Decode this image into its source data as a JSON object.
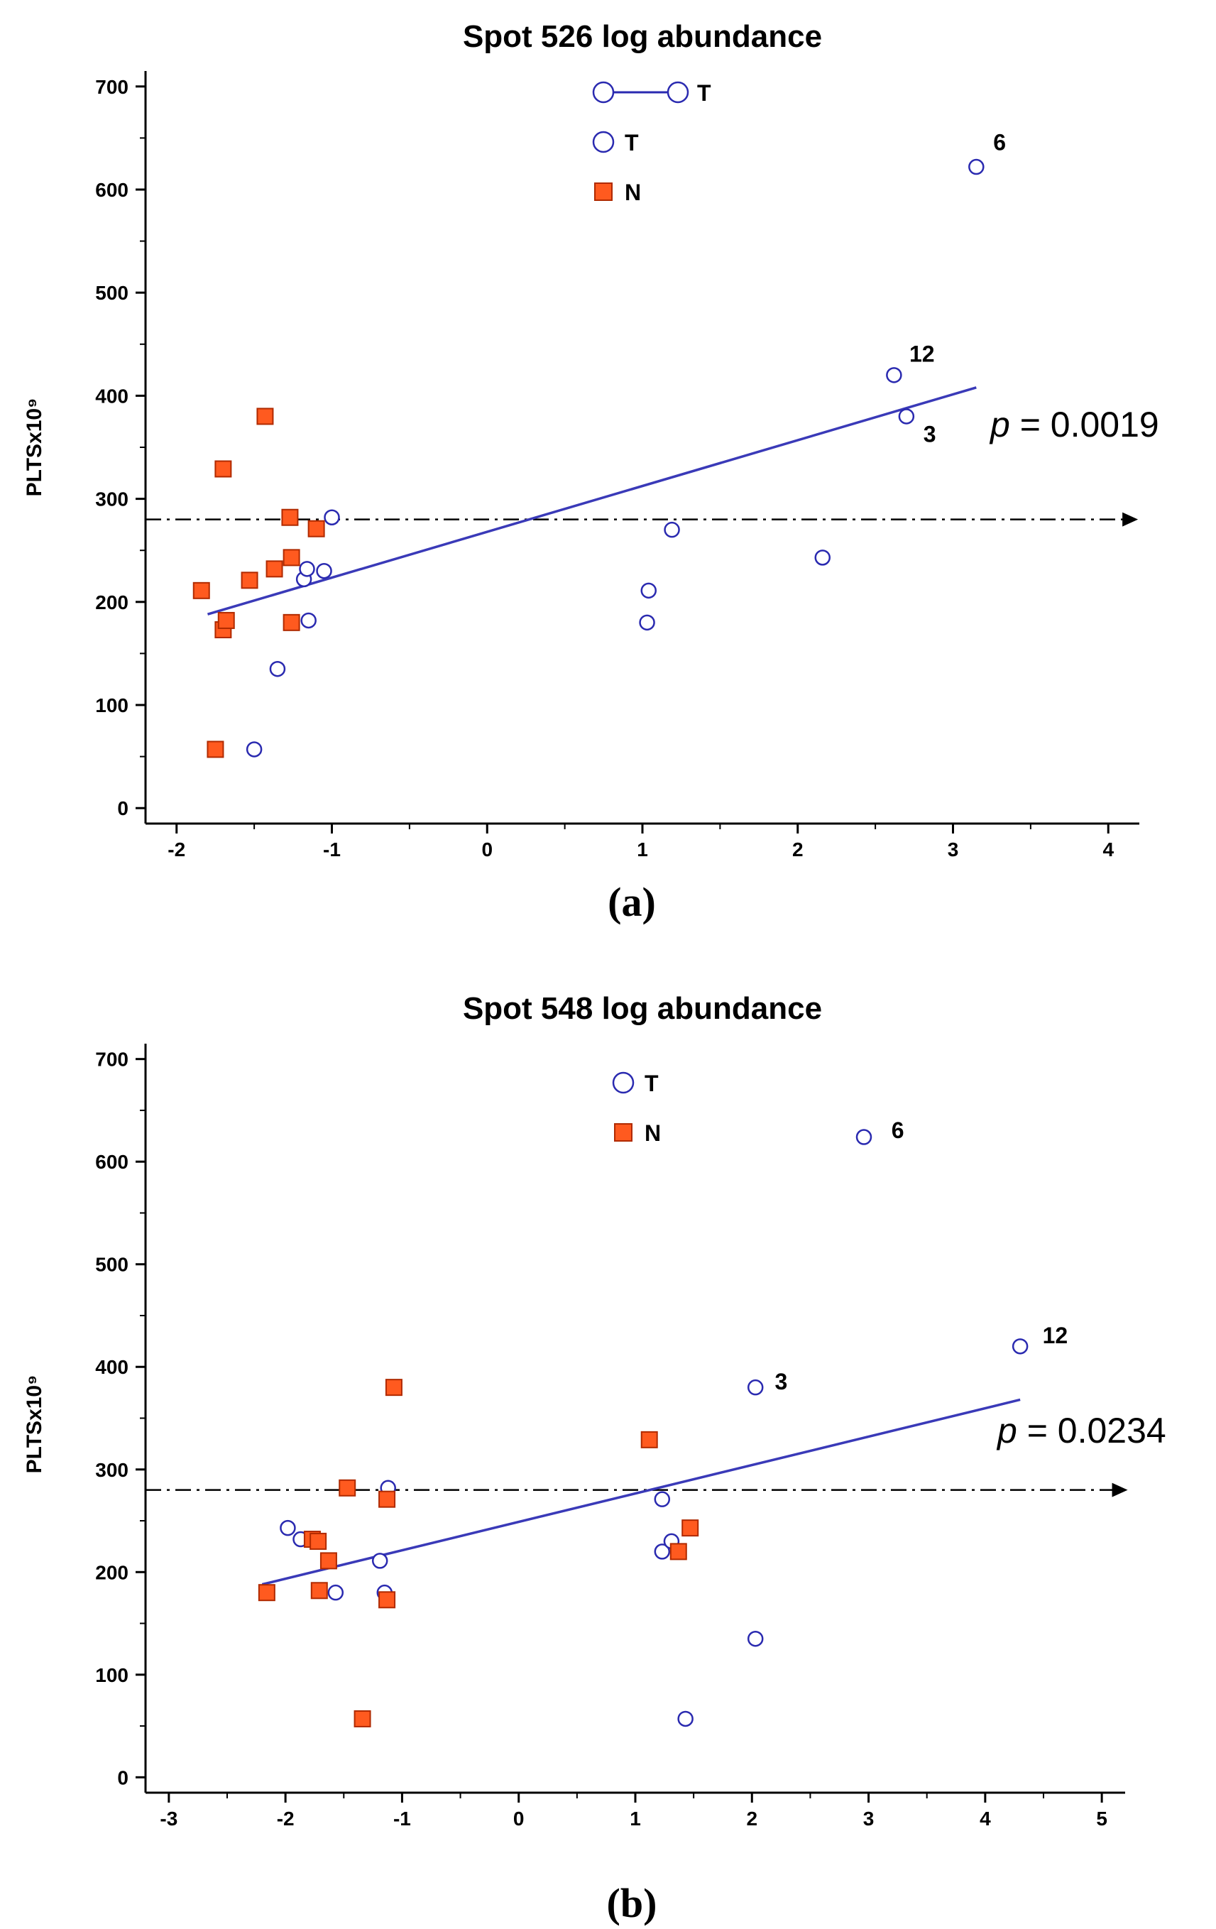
{
  "chart_data": [
    {
      "type": "scatter",
      "title": "Spot 526 log abundance",
      "panel_label": "(a)",
      "ylabel": "PLTSx10⁹",
      "xlabel": "",
      "xlim": [
        -2.2,
        4.2
      ],
      "ylim": [
        -15,
        715
      ],
      "x_ticks": [
        -2,
        -1,
        0,
        1,
        2,
        3,
        4
      ],
      "y_ticks": [
        0,
        100,
        200,
        300,
        400,
        500,
        600,
        700
      ],
      "legend": [
        {
          "marker": "circle-line",
          "label": "T"
        },
        {
          "marker": "circle",
          "label": "T"
        },
        {
          "marker": "square",
          "label": "N"
        }
      ],
      "p_value_prefix": "p",
      "p_value_text": " = 0.0019",
      "reference_line": {
        "y": 280,
        "x_start": -2.2,
        "x_end": 4.1
      },
      "regression": {
        "x": [
          -1.8,
          3.15
        ],
        "y": [
          188,
          408
        ]
      },
      "series": [
        {
          "name": "T",
          "marker": "circle",
          "points": [
            [
              -1.5,
              57
            ],
            [
              -1.35,
              135
            ],
            [
              -1.15,
              182
            ],
            [
              -1.18,
              222
            ],
            [
              -1.16,
              232
            ],
            [
              -1.05,
              230
            ],
            [
              -1.0,
              282
            ],
            [
              1.03,
              180
            ],
            [
              1.04,
              211
            ],
            [
              1.19,
              270
            ],
            [
              2.16,
              243
            ],
            [
              2.62,
              420
            ],
            [
              2.7,
              380
            ],
            [
              3.15,
              622
            ]
          ]
        },
        {
          "name": "N",
          "marker": "square",
          "points": [
            [
              -1.75,
              57
            ],
            [
              -1.7,
              173
            ],
            [
              -1.68,
              182
            ],
            [
              -1.84,
              211
            ],
            [
              -1.53,
              221
            ],
            [
              -1.37,
              232
            ],
            [
              -1.26,
              243
            ],
            [
              -1.26,
              180
            ],
            [
              -1.27,
              282
            ],
            [
              -1.1,
              271
            ],
            [
              -1.43,
              380
            ],
            [
              -1.7,
              329
            ]
          ]
        }
      ],
      "annotations": [
        {
          "text": "6",
          "x": 3.3,
          "y": 645
        },
        {
          "text": "12",
          "x": 2.8,
          "y": 440
        },
        {
          "text": "3",
          "x": 2.85,
          "y": 362
        }
      ]
    },
    {
      "type": "scatter",
      "title": "Spot 548 log abundance",
      "panel_label": "(b)",
      "ylabel": "PLTSx10⁹",
      "xlabel": "",
      "xlim": [
        -3.2,
        5.2
      ],
      "ylim": [
        -15,
        715
      ],
      "x_ticks": [
        -3,
        -2,
        -1,
        0,
        1,
        2,
        3,
        4,
        5
      ],
      "y_ticks": [
        0,
        100,
        200,
        300,
        400,
        500,
        600,
        700
      ],
      "legend": [
        {
          "marker": "circle",
          "label": "T"
        },
        {
          "marker": "square",
          "label": "N"
        }
      ],
      "p_value_prefix": "p",
      "p_value_text": " = 0.0234",
      "reference_line": {
        "y": 280,
        "x_start": -3.2,
        "x_end": 5.1
      },
      "regression": {
        "x": [
          -2.2,
          4.3
        ],
        "y": [
          188,
          368
        ]
      },
      "series": [
        {
          "name": "T",
          "marker": "circle",
          "points": [
            [
              -1.98,
              243
            ],
            [
              -1.87,
              232
            ],
            [
              -1.57,
              180
            ],
            [
              -1.19,
              211
            ],
            [
              -1.15,
              180
            ],
            [
              -1.12,
              282
            ],
            [
              1.23,
              271
            ],
            [
              1.23,
              220
            ],
            [
              1.31,
              230
            ],
            [
              1.43,
              57
            ],
            [
              2.03,
              135
            ],
            [
              2.03,
              380
            ],
            [
              2.96,
              624
            ],
            [
              4.3,
              420
            ]
          ]
        },
        {
          "name": "N",
          "marker": "square",
          "points": [
            [
              -2.16,
              180
            ],
            [
              -1.77,
              232
            ],
            [
              -1.72,
              230
            ],
            [
              -1.63,
              211
            ],
            [
              -1.71,
              182
            ],
            [
              -1.47,
              282
            ],
            [
              -1.13,
              271
            ],
            [
              -1.13,
              173
            ],
            [
              -1.07,
              380
            ],
            [
              -1.34,
              57
            ],
            [
              1.12,
              329
            ],
            [
              1.37,
              220
            ],
            [
              1.47,
              243
            ]
          ]
        }
      ],
      "annotations": [
        {
          "text": "6",
          "x": 3.25,
          "y": 630
        },
        {
          "text": "12",
          "x": 4.6,
          "y": 430
        },
        {
          "text": "3",
          "x": 2.25,
          "y": 385
        }
      ]
    }
  ]
}
